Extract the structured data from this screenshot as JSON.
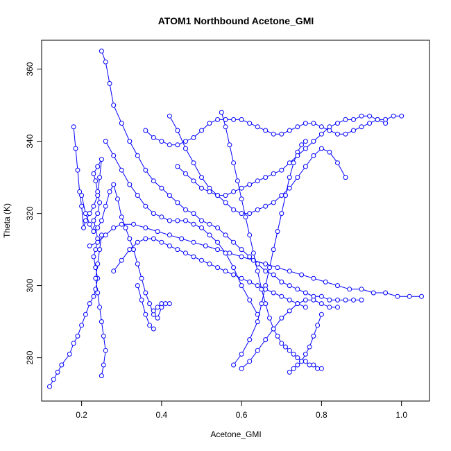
{
  "chart_data": {
    "type": "scatter",
    "title": "ATOM1 Northbound Acetone_GMI",
    "xlabel": "Acetone_GMI",
    "ylabel": "Theta (K)",
    "xlim": [
      0.1,
      1.07
    ],
    "ylim": [
      268,
      368
    ],
    "xticks": [
      0.2,
      0.4,
      0.6,
      0.8,
      1.0
    ],
    "xtick_labels": [
      "0.2",
      "0.4",
      "0.6",
      "0.8",
      "1.0"
    ],
    "yticks": [
      280,
      300,
      320,
      340,
      360
    ],
    "ytick_labels": [
      "280",
      "300",
      "320",
      "340",
      "360"
    ],
    "grid": false,
    "legend": "none",
    "marker": "open-circle",
    "color": "#0000ff",
    "series": [
      {
        "x": [
          0.12,
          0.13,
          0.14,
          0.15,
          0.17,
          0.18,
          0.19,
          0.2,
          0.21,
          0.22,
          0.23,
          0.235,
          0.24,
          0.235,
          0.23,
          0.235,
          0.24,
          0.235,
          0.23,
          0.24,
          0.245,
          0.24,
          0.235,
          0.23,
          0.24,
          0.25,
          0.245,
          0.24,
          0.23,
          0.22,
          0.21,
          0.205,
          0.2,
          0.195,
          0.19,
          0.185,
          0.18
        ],
        "y": [
          272,
          274,
          276,
          278,
          281,
          284,
          286,
          289,
          292,
          295,
          297,
          299,
          302,
          305,
          308,
          310,
          313,
          316,
          318,
          320,
          323,
          326,
          329,
          331,
          333,
          335,
          330,
          325,
          322,
          320,
          318,
          316,
          322,
          326,
          332,
          338,
          344
        ]
      },
      {
        "x": [
          0.2,
          0.21,
          0.22,
          0.23,
          0.24,
          0.25,
          0.26,
          0.27,
          0.28,
          0.29,
          0.3,
          0.31,
          0.32,
          0.33,
          0.34,
          0.35,
          0.36,
          0.37,
          0.38,
          0.39,
          0.4
        ],
        "y": [
          325,
          320,
          317,
          315,
          316,
          318,
          322,
          326,
          328,
          324,
          319,
          316,
          313,
          310,
          306,
          302,
          298,
          295,
          292,
          291,
          294
        ]
      },
      {
        "x": [
          0.25,
          0.26,
          0.27,
          0.28,
          0.3,
          0.32,
          0.34,
          0.36,
          0.38,
          0.4,
          0.42,
          0.44,
          0.46,
          0.48,
          0.5,
          0.52,
          0.54,
          0.56,
          0.58,
          0.6,
          0.62,
          0.64,
          0.66,
          0.68,
          0.7,
          0.72,
          0.74,
          0.76,
          0.78,
          0.8,
          0.82,
          0.84,
          0.86,
          0.88,
          0.9
        ],
        "y": [
          365,
          362,
          356,
          350,
          345,
          340,
          336,
          332,
          329,
          327,
          325,
          323,
          321,
          320,
          318,
          317,
          316,
          314,
          312,
          310,
          308,
          306,
          304,
          303,
          301,
          300,
          299,
          298,
          297,
          297,
          296,
          296,
          296,
          296,
          296
        ]
      },
      {
        "x": [
          0.22,
          0.24,
          0.26,
          0.28,
          0.3,
          0.33,
          0.36,
          0.39,
          0.42,
          0.45,
          0.48,
          0.51,
          0.54,
          0.57,
          0.6,
          0.63,
          0.66,
          0.69,
          0.72,
          0.75,
          0.78,
          0.81,
          0.84,
          0.87,
          0.9,
          0.93,
          0.96,
          0.99,
          1.02,
          1.05
        ],
        "y": [
          311,
          312,
          314,
          316,
          317,
          317,
          316,
          315,
          314,
          313,
          312,
          311,
          310,
          309,
          308,
          307,
          306,
          305,
          304,
          303,
          302,
          301,
          300,
          299,
          299,
          298,
          298,
          297,
          297,
          297
        ]
      },
      {
        "x": [
          0.26,
          0.28,
          0.3,
          0.32,
          0.34,
          0.36,
          0.38,
          0.4,
          0.42,
          0.44,
          0.46,
          0.48,
          0.5,
          0.52,
          0.54,
          0.56,
          0.58,
          0.6,
          0.62,
          0.64
        ],
        "y": [
          340,
          336,
          332,
          328,
          325,
          322,
          320,
          319,
          318,
          318,
          318,
          317,
          316,
          314,
          312,
          309,
          305,
          300,
          296,
          292
        ]
      },
      {
        "x": [
          0.36,
          0.38,
          0.4,
          0.42,
          0.44,
          0.46,
          0.48,
          0.5,
          0.52,
          0.54,
          0.56,
          0.58,
          0.6,
          0.62,
          0.64,
          0.66,
          0.68,
          0.7,
          0.72,
          0.74,
          0.76,
          0.78,
          0.8,
          0.82,
          0.84,
          0.86,
          0.88,
          0.9,
          0.92,
          0.94,
          0.96,
          0.98,
          1.0
        ],
        "y": [
          343,
          341,
          340,
          339,
          339,
          340,
          341,
          343,
          345,
          346,
          346,
          346,
          346,
          345,
          344,
          343,
          342,
          342,
          343,
          344,
          345,
          345,
          344,
          343,
          342,
          342,
          343,
          344,
          345,
          346,
          346,
          347,
          347
        ]
      },
      {
        "x": [
          0.42,
          0.44,
          0.46,
          0.48,
          0.5,
          0.52,
          0.54,
          0.56,
          0.58,
          0.6,
          0.62,
          0.64,
          0.66,
          0.68,
          0.7,
          0.72,
          0.74,
          0.76,
          0.78,
          0.8,
          0.82,
          0.84,
          0.86
        ],
        "y": [
          347,
          343,
          338,
          334,
          330,
          327,
          325,
          323,
          321,
          320,
          320,
          321,
          322,
          323,
          325,
          327,
          330,
          333,
          336,
          338,
          337,
          334,
          330
        ]
      },
      {
        "x": [
          0.55,
          0.56,
          0.57,
          0.58,
          0.59,
          0.6,
          0.61,
          0.62,
          0.63,
          0.64,
          0.65,
          0.66,
          0.67,
          0.68,
          0.69,
          0.7,
          0.71,
          0.72,
          0.73,
          0.74,
          0.75,
          0.76,
          0.77,
          0.78,
          0.79,
          0.8
        ],
        "y": [
          348,
          344,
          339,
          334,
          329,
          324,
          319,
          314,
          309,
          304,
          299,
          295,
          291,
          288,
          286,
          284,
          283,
          282,
          281,
          280,
          279,
          279,
          278,
          278,
          277,
          277
        ]
      },
      {
        "x": [
          0.58,
          0.6,
          0.62,
          0.64,
          0.65,
          0.66,
          0.67,
          0.68,
          0.69,
          0.7,
          0.71,
          0.72,
          0.73,
          0.74,
          0.75,
          0.76
        ],
        "y": [
          278,
          281,
          285,
          290,
          295,
          300,
          305,
          310,
          315,
          320,
          325,
          330,
          334,
          337,
          339,
          340
        ]
      },
      {
        "x": [
          0.6,
          0.62,
          0.64,
          0.66,
          0.68,
          0.7,
          0.72,
          0.74,
          0.76,
          0.78,
          0.8,
          0.82,
          0.84
        ],
        "y": [
          277,
          279,
          282,
          285,
          288,
          291,
          293,
          295,
          296,
          296,
          295,
          294,
          294
        ]
      },
      {
        "x": [
          0.72,
          0.73,
          0.74,
          0.75,
          0.76,
          0.77,
          0.78,
          0.79,
          0.8
        ],
        "y": [
          276,
          277,
          278,
          279,
          281,
          283,
          286,
          289,
          292
        ]
      },
      {
        "x": [
          0.28,
          0.3,
          0.32,
          0.34,
          0.36,
          0.38,
          0.4,
          0.42,
          0.44,
          0.46,
          0.48,
          0.5,
          0.52,
          0.54,
          0.56,
          0.58,
          0.6,
          0.62,
          0.64,
          0.66,
          0.68,
          0.7,
          0.72,
          0.74,
          0.76
        ],
        "y": [
          304,
          307,
          310,
          312,
          313,
          313,
          312,
          311,
          310,
          309,
          308,
          307,
          306,
          305,
          304,
          303,
          302,
          301,
          300,
          299,
          298,
          297,
          296,
          295,
          294
        ]
      },
      {
        "x": [
          0.34,
          0.35,
          0.36,
          0.37,
          0.38
        ],
        "y": [
          300,
          296,
          292,
          289,
          288
        ]
      },
      {
        "x": [
          0.38,
          0.39,
          0.4,
          0.41,
          0.42
        ],
        "y": [
          293,
          294,
          295,
          295,
          295
        ]
      },
      {
        "x": [
          0.25,
          0.255,
          0.26,
          0.255,
          0.25,
          0.245,
          0.24,
          0.235,
          0.24,
          0.245,
          0.25
        ],
        "y": [
          275,
          278,
          282,
          286,
          290,
          294,
          298,
          302,
          306,
          310,
          314
        ]
      },
      {
        "x": [
          0.44,
          0.46,
          0.48,
          0.5,
          0.52,
          0.54,
          0.56,
          0.58,
          0.6,
          0.62,
          0.64,
          0.66,
          0.68,
          0.7,
          0.72,
          0.74,
          0.76,
          0.78,
          0.8,
          0.82,
          0.84,
          0.86,
          0.88,
          0.9,
          0.92,
          0.94,
          0.96
        ],
        "y": [
          333,
          331,
          329,
          327,
          326,
          325,
          325,
          326,
          327,
          328,
          329,
          330,
          331,
          332,
          334,
          336,
          338,
          340,
          342,
          344,
          345,
          346,
          346,
          347,
          347,
          346,
          345
        ]
      }
    ]
  }
}
